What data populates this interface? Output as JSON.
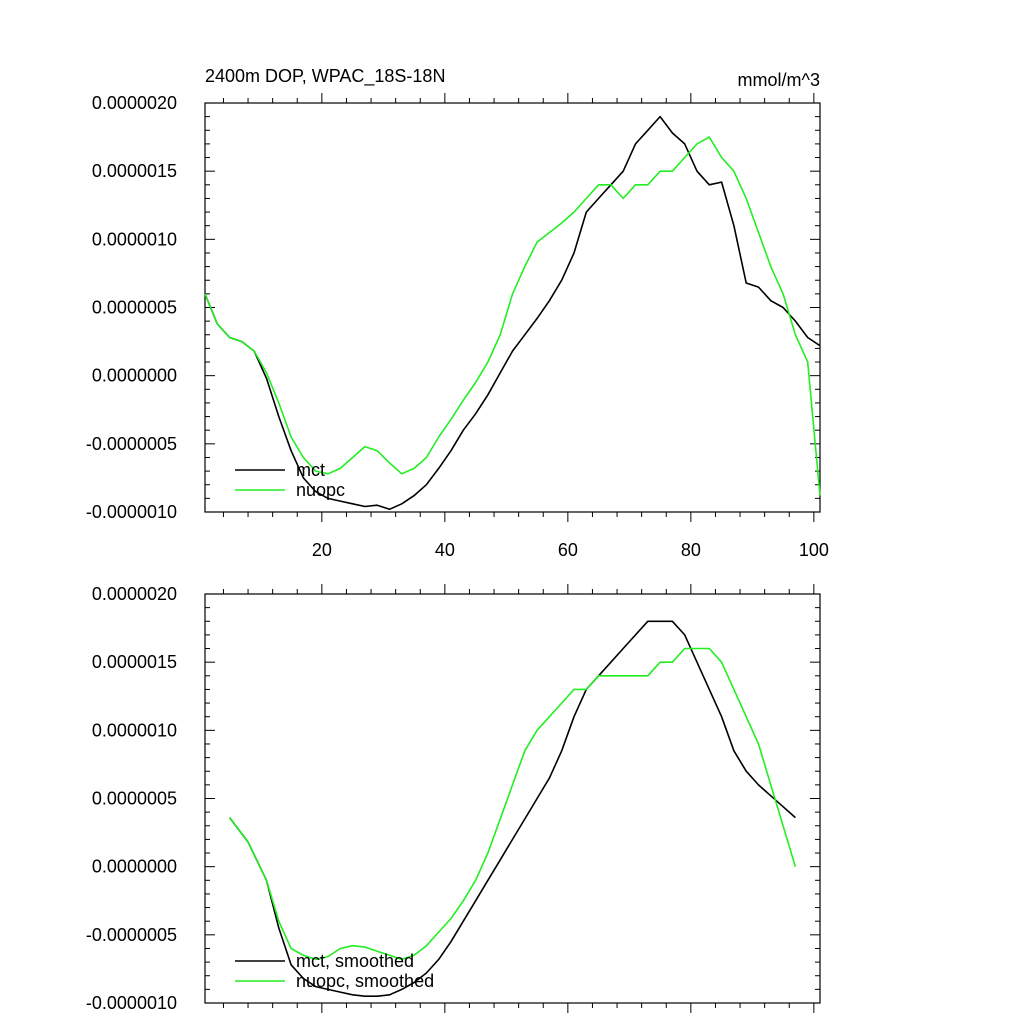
{
  "colors": {
    "mct": "#000000",
    "nuopc": "#22ee22"
  },
  "chart_data": [
    {
      "type": "line",
      "title_left": "2400m DOP, WPAC_18S-18N",
      "title_right": "mmol/m^3",
      "xlim": [
        1,
        101
      ],
      "ylim": [
        -1e-06,
        2e-06
      ],
      "yticks": [
        -1e-06,
        -5e-07,
        0,
        5e-07,
        1e-06,
        1.5e-06,
        2e-06
      ],
      "ytick_labels": [
        "-0.0000010",
        "-0.0000005",
        "0.0000000",
        "0.0000005",
        "0.0000010",
        "0.0000015",
        "0.0000020"
      ],
      "xticks": [
        20,
        40,
        60,
        80,
        100
      ],
      "xtick_labels": [
        "20",
        "40",
        "60",
        "80",
        "100"
      ],
      "series": [
        {
          "name": "mct",
          "color_key": "mct",
          "x": [
            1,
            3,
            5,
            7,
            9,
            11,
            13,
            15,
            17,
            19,
            21,
            23,
            25,
            27,
            29,
            31,
            33,
            35,
            37,
            39,
            41,
            43,
            45,
            47,
            49,
            51,
            53,
            55,
            57,
            59,
            61,
            63,
            65,
            67,
            69,
            71,
            73,
            75,
            77,
            79,
            81,
            83,
            85,
            87,
            89,
            91,
            93,
            95,
            97,
            99,
            101
          ],
          "y": [
            6e-07,
            3.8e-07,
            2.8e-07,
            2.5e-07,
            1.8e-07,
            -2e-08,
            -3e-07,
            -5.5e-07,
            -7.5e-07,
            -8.5e-07,
            -9e-07,
            -9.2e-07,
            -9.4e-07,
            -9.6e-07,
            -9.5e-07,
            -9.8e-07,
            -9.4e-07,
            -8.8e-07,
            -8e-07,
            -6.8e-07,
            -5.5e-07,
            -4e-07,
            -2.8e-07,
            -1.4e-07,
            2e-08,
            1.8e-07,
            3e-07,
            4.2e-07,
            5.5e-07,
            7e-07,
            9e-07,
            1.2e-06,
            1.3e-06,
            1.4e-06,
            1.5e-06,
            1.7e-06,
            1.8e-06,
            1.9e-06,
            1.78e-06,
            1.7e-06,
            1.5e-06,
            1.4e-06,
            1.42e-06,
            1.1e-06,
            6.8e-07,
            6.5e-07,
            5.5e-07,
            5e-07,
            4e-07,
            2.8e-07,
            2.2e-07
          ]
        },
        {
          "name": "nuopc",
          "color_key": "nuopc",
          "x": [
            1,
            3,
            5,
            7,
            9,
            11,
            13,
            15,
            17,
            19,
            21,
            23,
            25,
            27,
            29,
            31,
            33,
            35,
            37,
            39,
            41,
            43,
            45,
            47,
            49,
            51,
            53,
            55,
            57,
            59,
            61,
            63,
            65,
            67,
            69,
            71,
            73,
            75,
            77,
            79,
            81,
            83,
            85,
            87,
            89,
            91,
            93,
            95,
            97,
            99,
            101
          ],
          "y": [
            6e-07,
            3.8e-07,
            2.8e-07,
            2.5e-07,
            1.8e-07,
            2e-08,
            -2e-07,
            -4.5e-07,
            -6e-07,
            -7e-07,
            -7.2e-07,
            -6.8e-07,
            -6e-07,
            -5.2e-07,
            -5.5e-07,
            -6.4e-07,
            -7.2e-07,
            -6.8e-07,
            -6e-07,
            -4.5e-07,
            -3.2e-07,
            -1.8e-07,
            -5e-08,
            1e-07,
            3e-07,
            6e-07,
            8e-07,
            9.8e-07,
            1.05e-06,
            1.12e-06,
            1.2e-06,
            1.3e-06,
            1.4e-06,
            1.4e-06,
            1.3e-06,
            1.4e-06,
            1.4e-06,
            1.5e-06,
            1.5e-06,
            1.6e-06,
            1.7e-06,
            1.75e-06,
            1.6e-06,
            1.5e-06,
            1.3e-06,
            1.05e-06,
            8e-07,
            6e-07,
            3e-07,
            1e-07,
            -8.8e-07
          ]
        }
      ],
      "legend": {
        "placement": "bottom-left",
        "entries": [
          "mct",
          "nuopc"
        ]
      }
    },
    {
      "type": "line",
      "xlim": [
        1,
        101
      ],
      "ylim": [
        -1e-06,
        2e-06
      ],
      "yticks": [
        -1e-06,
        -5e-07,
        0,
        5e-07,
        1e-06,
        1.5e-06,
        2e-06
      ],
      "ytick_labels": [
        "-0.0000010",
        "-0.0000005",
        "0.0000000",
        "0.0000005",
        "0.0000010",
        "0.0000015",
        "0.0000020"
      ],
      "xticks": [
        20,
        40,
        60,
        80,
        100
      ],
      "series": [
        {
          "name": "mct, smoothed",
          "color_key": "mct",
          "x": [
            5,
            8,
            11,
            13,
            15,
            17,
            19,
            21,
            23,
            25,
            27,
            29,
            31,
            33,
            35,
            37,
            39,
            41,
            43,
            45,
            47,
            49,
            51,
            53,
            55,
            57,
            59,
            61,
            63,
            65,
            67,
            69,
            71,
            73,
            75,
            77,
            79,
            81,
            83,
            85,
            87,
            89,
            91,
            93,
            95,
            97
          ],
          "y": [
            3.6e-07,
            1.8e-07,
            -1e-07,
            -4.5e-07,
            -7.2e-07,
            -8.2e-07,
            -8.8e-07,
            -9e-07,
            -9.2e-07,
            -9.4e-07,
            -9.5e-07,
            -9.5e-07,
            -9.4e-07,
            -9e-07,
            -8.5e-07,
            -7.8e-07,
            -6.8e-07,
            -5.5e-07,
            -4e-07,
            -2.5e-07,
            -1e-07,
            5e-08,
            2e-07,
            3.5e-07,
            5e-07,
            6.5e-07,
            8.5e-07,
            1.1e-06,
            1.3e-06,
            1.4e-06,
            1.5e-06,
            1.6e-06,
            1.7e-06,
            1.8e-06,
            1.8e-06,
            1.8e-06,
            1.7e-06,
            1.5e-06,
            1.3e-06,
            1.1e-06,
            8.5e-07,
            7e-07,
            6e-07,
            5.2e-07,
            4.4e-07,
            3.6e-07
          ]
        },
        {
          "name": "nuopc, smoothed",
          "color_key": "nuopc",
          "x": [
            5,
            8,
            11,
            13,
            15,
            17,
            19,
            21,
            23,
            25,
            27,
            29,
            31,
            33,
            35,
            37,
            39,
            41,
            43,
            45,
            47,
            49,
            51,
            53,
            55,
            57,
            59,
            61,
            63,
            65,
            67,
            69,
            71,
            73,
            75,
            77,
            79,
            81,
            83,
            85,
            87,
            89,
            91,
            93,
            95,
            97
          ],
          "y": [
            3.6e-07,
            1.8e-07,
            -1e-07,
            -4e-07,
            -6e-07,
            -6.5e-07,
            -6.8e-07,
            -6.6e-07,
            -6e-07,
            -5.8e-07,
            -5.9e-07,
            -6.2e-07,
            -6.5e-07,
            -6.8e-07,
            -6.5e-07,
            -5.8e-07,
            -4.8e-07,
            -3.8e-07,
            -2.5e-07,
            -1e-07,
            1e-07,
            3.5e-07,
            6e-07,
            8.5e-07,
            1e-06,
            1.1e-06,
            1.2e-06,
            1.3e-06,
            1.3e-06,
            1.4e-06,
            1.4e-06,
            1.4e-06,
            1.4e-06,
            1.4e-06,
            1.5e-06,
            1.5e-06,
            1.6e-06,
            1.6e-06,
            1.6e-06,
            1.5e-06,
            1.3e-06,
            1.1e-06,
            9e-07,
            6e-07,
            3e-07,
            0.0
          ]
        }
      ],
      "legend": {
        "placement": "bottom-left",
        "entries": [
          "mct, smoothed",
          "nuopc, smoothed"
        ]
      }
    }
  ]
}
